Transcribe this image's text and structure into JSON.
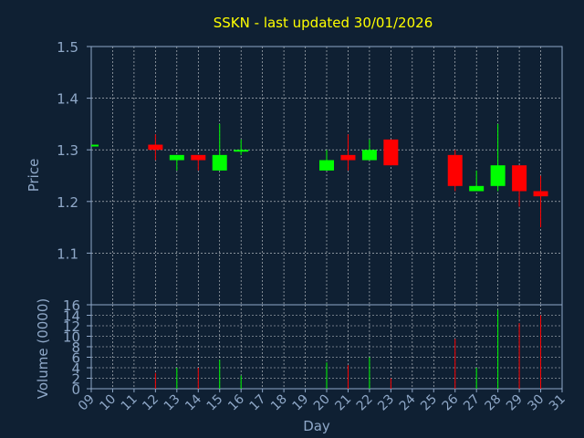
{
  "chart_data": {
    "type": "candlestick",
    "title": "SSKN - last updated 30/01/2026",
    "xlabel": "Day",
    "ylabel": "Price",
    "volume_label": "Volume (0000)",
    "x_ticks": [
      "09",
      "10",
      "11",
      "12",
      "13",
      "14",
      "15",
      "16",
      "17",
      "18",
      "19",
      "20",
      "21",
      "22",
      "23",
      "24",
      "25",
      "26",
      "27",
      "28",
      "29",
      "30",
      "31"
    ],
    "price_ylim": [
      1.0,
      1.5
    ],
    "price_ticks": [
      "1.1",
      "1.2",
      "1.3",
      "1.4",
      "1.5"
    ],
    "volume_ylim": [
      0,
      16
    ],
    "volume_ticks": [
      "0",
      "2",
      "4",
      "6",
      "8",
      "10",
      "12",
      "14",
      "16"
    ],
    "grid": true,
    "colors": {
      "up": "#00ff00",
      "down": "#ff0000",
      "grid": "#ffffff",
      "axis": "#8fa8c8",
      "title": "#ffff00",
      "background": "#0f2033"
    },
    "candles": [
      {
        "day": 9,
        "open": 1.31,
        "high": 1.31,
        "low": 1.31,
        "close": 1.31,
        "volume": 0
      },
      {
        "day": 12,
        "open": 1.31,
        "high": 1.33,
        "low": 1.28,
        "close": 1.3,
        "volume": 3
      },
      {
        "day": 13,
        "open": 1.28,
        "high": 1.29,
        "low": 1.26,
        "close": 1.29,
        "volume": 4
      },
      {
        "day": 14,
        "open": 1.29,
        "high": 1.29,
        "low": 1.26,
        "close": 1.28,
        "volume": 4
      },
      {
        "day": 15,
        "open": 1.26,
        "high": 1.35,
        "low": 1.26,
        "close": 1.29,
        "volume": 5.5
      },
      {
        "day": 16,
        "open": 1.3,
        "high": 1.32,
        "low": 1.29,
        "close": 1.3,
        "volume": 2.5
      },
      {
        "day": 20,
        "open": 1.26,
        "high": 1.3,
        "low": 1.26,
        "close": 1.28,
        "volume": 5
      },
      {
        "day": 21,
        "open": 1.29,
        "high": 1.33,
        "low": 1.26,
        "close": 1.28,
        "volume": 4.5
      },
      {
        "day": 22,
        "open": 1.28,
        "high": 1.32,
        "low": 1.28,
        "close": 1.3,
        "volume": 6
      },
      {
        "day": 23,
        "open": 1.32,
        "high": 1.32,
        "low": 1.27,
        "close": 1.27,
        "volume": 2
      },
      {
        "day": 26,
        "open": 1.29,
        "high": 1.3,
        "low": 1.22,
        "close": 1.23,
        "volume": 9.5
      },
      {
        "day": 27,
        "open": 1.22,
        "high": 1.26,
        "low": 1.22,
        "close": 1.23,
        "volume": 4
      },
      {
        "day": 28,
        "open": 1.23,
        "high": 1.35,
        "low": 1.22,
        "close": 1.27,
        "volume": 15
      },
      {
        "day": 29,
        "open": 1.27,
        "high": 1.27,
        "low": 1.19,
        "close": 1.22,
        "volume": 12.5
      },
      {
        "day": 30,
        "open": 1.22,
        "high": 1.25,
        "low": 1.15,
        "close": 1.21,
        "volume": 14
      }
    ]
  }
}
